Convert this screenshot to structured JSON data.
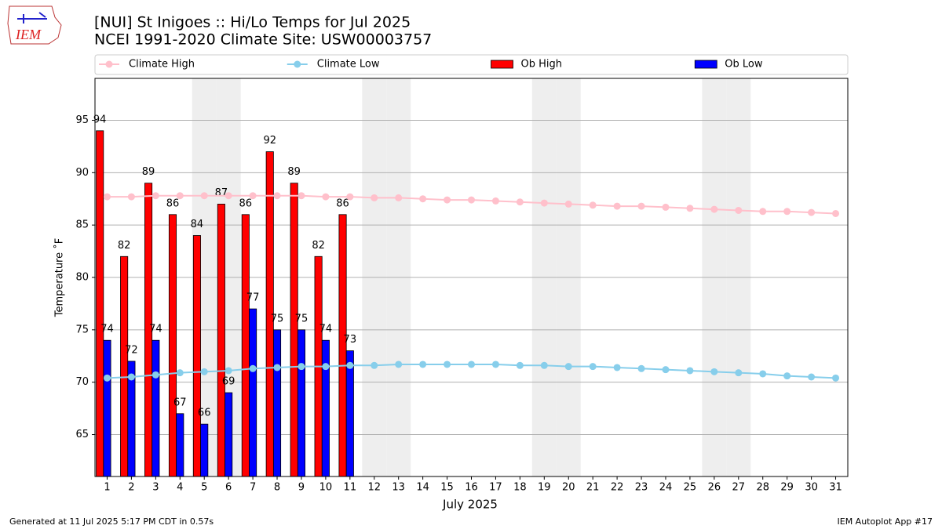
{
  "logo_text": "IEM",
  "footer_left": "Generated at 11 Jul 2025 5:17 PM CDT in 0.57s",
  "footer_right": "IEM Autoplot App #17",
  "chart_data": {
    "type": "bar",
    "title": "[NUI] St Inigoes :: Hi/Lo Temps for Jul 2025",
    "subtitle": "NCEI 1991-2020 Climate Site: USW00003757",
    "x_label": "July 2025",
    "y_label": "Temperature ˚F",
    "x": [
      1,
      2,
      3,
      4,
      5,
      6,
      7,
      8,
      9,
      10,
      11,
      12,
      13,
      14,
      15,
      16,
      17,
      18,
      19,
      20,
      21,
      22,
      23,
      24,
      25,
      26,
      27,
      28,
      29,
      30,
      31
    ],
    "xlim": [
      0.5,
      31.5
    ],
    "xticks": [
      1,
      2,
      3,
      4,
      5,
      6,
      7,
      8,
      9,
      10,
      11,
      12,
      13,
      14,
      15,
      16,
      17,
      18,
      19,
      20,
      21,
      22,
      23,
      24,
      25,
      26,
      27,
      28,
      29,
      30,
      31
    ],
    "ylim": [
      61,
      99
    ],
    "yticks": [
      65,
      70,
      75,
      80,
      85,
      90,
      95
    ],
    "grid": true,
    "shaded_days": [
      5,
      6,
      12,
      13,
      19,
      20,
      26,
      27
    ],
    "shade_color": "#eeeeee",
    "legend": "top-outside",
    "series": [
      {
        "name": "Climate High",
        "type": "line",
        "color": "#ffc0cb",
        "values": [
          87.7,
          87.7,
          87.8,
          87.8,
          87.8,
          87.8,
          87.8,
          87.8,
          87.8,
          87.7,
          87.7,
          87.6,
          87.6,
          87.5,
          87.4,
          87.4,
          87.3,
          87.2,
          87.1,
          87.0,
          86.9,
          86.8,
          86.8,
          86.7,
          86.6,
          86.5,
          86.4,
          86.3,
          86.3,
          86.2,
          86.1
        ]
      },
      {
        "name": "Climate Low",
        "type": "line",
        "color": "#87ceeb",
        "values": [
          70.4,
          70.5,
          70.7,
          70.9,
          71.0,
          71.1,
          71.3,
          71.4,
          71.5,
          71.5,
          71.6,
          71.6,
          71.7,
          71.7,
          71.7,
          71.7,
          71.7,
          71.6,
          71.6,
          71.5,
          71.5,
          71.4,
          71.3,
          71.2,
          71.1,
          71.0,
          70.9,
          70.8,
          70.6,
          70.5,
          70.4
        ]
      },
      {
        "name": "Ob High",
        "type": "bar",
        "color": "#ff0000",
        "values": [
          94,
          82,
          89,
          86,
          84,
          87,
          86,
          92,
          89,
          82,
          86,
          null,
          null,
          null,
          null,
          null,
          null,
          null,
          null,
          null,
          null,
          null,
          null,
          null,
          null,
          null,
          null,
          null,
          null,
          null,
          null
        ]
      },
      {
        "name": "Ob Low",
        "type": "bar",
        "color": "#0000ff",
        "values": [
          74,
          72,
          74,
          67,
          66,
          69,
          77,
          75,
          75,
          74,
          73,
          null,
          null,
          null,
          null,
          null,
          null,
          null,
          null,
          null,
          null,
          null,
          null,
          null,
          null,
          null,
          null,
          null,
          null,
          null,
          null
        ]
      }
    ]
  }
}
